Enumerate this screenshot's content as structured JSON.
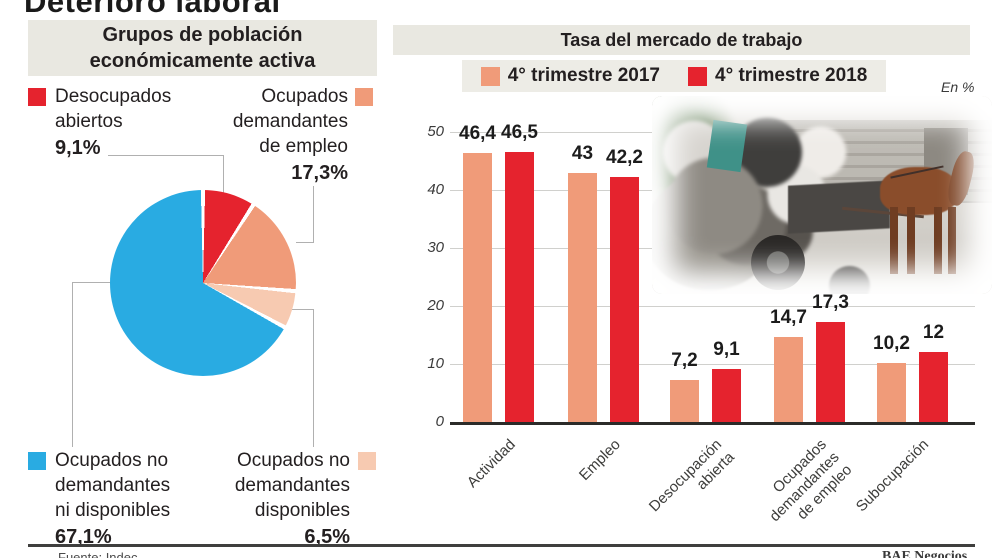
{
  "title": "Deterioro laboral",
  "left_panel": {
    "header": "Grupos de población\neconómicamente activa",
    "legend": {
      "desocupados": {
        "label": "Desocupados\nabiertos",
        "value": "9,1%"
      },
      "demandantes": {
        "label": "Ocupados\ndemandantes\nde empleo",
        "value": "17,3%"
      },
      "no_demandantes": {
        "label": "Ocupados no\ndemandantes\nni disponibles",
        "value": "67,1%"
      },
      "disponibles": {
        "label": "Ocupados no\ndemandantes\ndisponibles",
        "value": "6,5%"
      }
    }
  },
  "right_panel": {
    "header": "Tasa del mercado de trabajo",
    "legend": [
      {
        "label": "4° trimestre 2017",
        "color": "#f09b79"
      },
      {
        "label": "4° trimestre 2018",
        "color": "#e5232e"
      }
    ],
    "unit_note": "En %"
  },
  "footer": {
    "source": "Fuente: Indec",
    "credit": "BAE Negocios"
  },
  "colors": {
    "red": "#e5232e",
    "salmon": "#f09b79",
    "pink": "#f7cab1",
    "blue": "#29abe2",
    "header_bg": "#e9e8e1",
    "legend_bg": "#edece6",
    "grid": "#d0d0cd",
    "baseline": "#2b2b29",
    "connector": "#b0b0b0"
  },
  "chart_data": [
    {
      "type": "pie",
      "title": "Grupos de población económicamente activa",
      "labels": [
        "Desocupados abiertos",
        "Ocupados demandantes de empleo",
        "Ocupados no demandantes disponibles",
        "Ocupados no demandantes ni disponibles"
      ],
      "values": [
        9.1,
        17.3,
        6.5,
        67.1
      ],
      "display_values": [
        "9,1%",
        "17,3%",
        "6,5%",
        "67,1%"
      ],
      "colors": [
        "#e5232e",
        "#f09b79",
        "#f7cab1",
        "#29abe2"
      ],
      "start_angle_deg": 0,
      "direction": "clockwise"
    },
    {
      "type": "bar",
      "title": "Tasa del mercado de trabajo",
      "categories": [
        "Actividad",
        "Empleo",
        "Desocupación abierta",
        "Ocupados demandantes de empleo",
        "Subocupación"
      ],
      "category_lines": [
        "Actividad",
        "Empleo",
        "Desocupación\nabierta",
        "Ocupados\ndemandantes\nde empleo",
        "Subocupación"
      ],
      "series": [
        {
          "name": "4° trimestre 2017",
          "color": "#f09b79",
          "values": [
            46.4,
            43,
            7.2,
            14.7,
            10.2
          ]
        },
        {
          "name": "4° trimestre 2018",
          "color": "#e5232e",
          "values": [
            46.5,
            42.2,
            9.1,
            17.3,
            12
          ]
        }
      ],
      "display_values": [
        [
          "46,4",
          "43",
          "7,2",
          "14,7",
          "10,2"
        ],
        [
          "46,5",
          "42,2",
          "9,1",
          "17,3",
          "12"
        ]
      ],
      "ylabel": "En %",
      "ylim": [
        0,
        50
      ],
      "yticks": [
        0,
        10,
        20,
        30,
        40,
        50
      ],
      "grid": true,
      "legend_position": "top"
    }
  ]
}
